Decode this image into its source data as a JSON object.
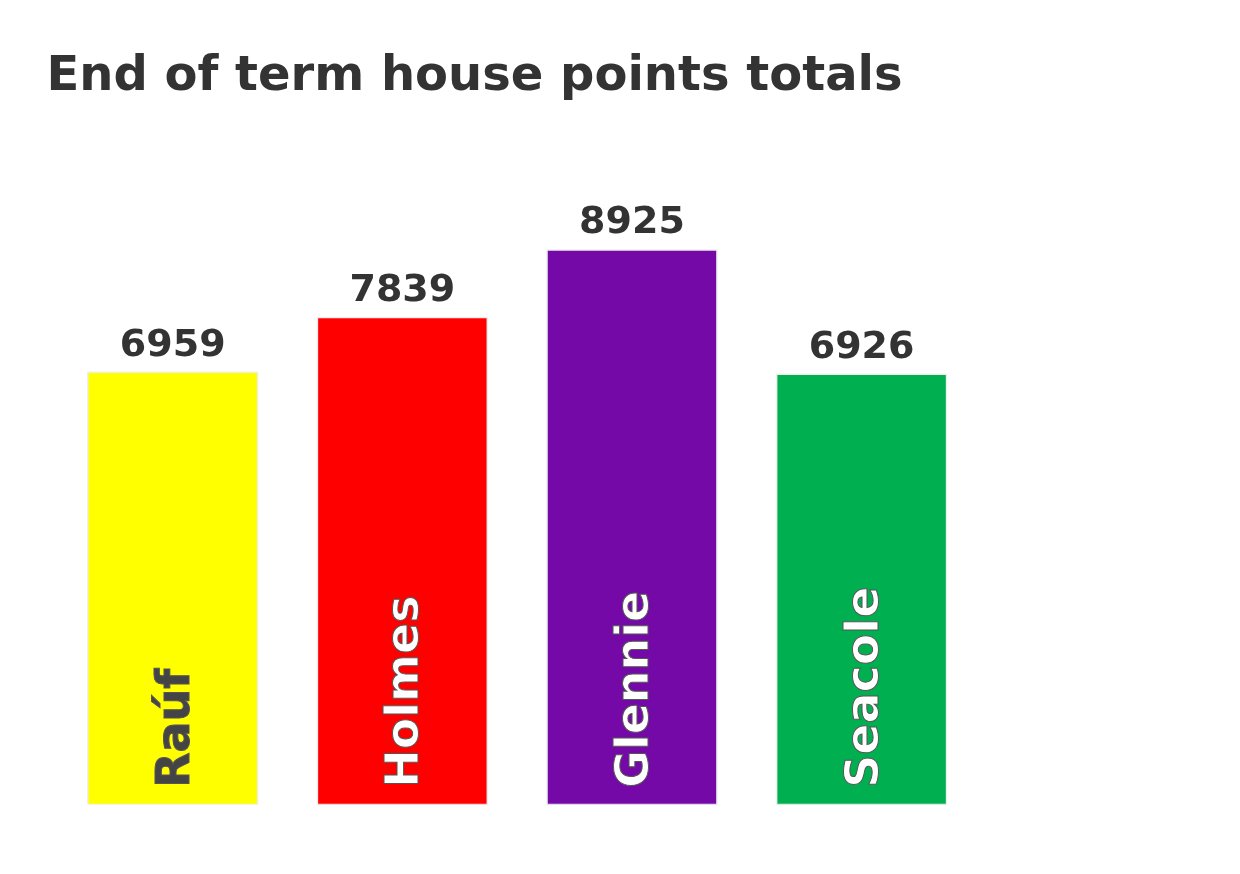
{
  "chart_data": {
    "type": "bar",
    "title": "End of term house points totals",
    "categories": [
      "Raúf",
      "Holmes",
      "Glennie",
      "Seacole"
    ],
    "values": [
      6959,
      7839,
      8925,
      6926
    ],
    "colors": [
      "#ffff00",
      "#ff0000",
      "#7509a8",
      "#00b050"
    ],
    "data_labels": true,
    "grid": false
  }
}
